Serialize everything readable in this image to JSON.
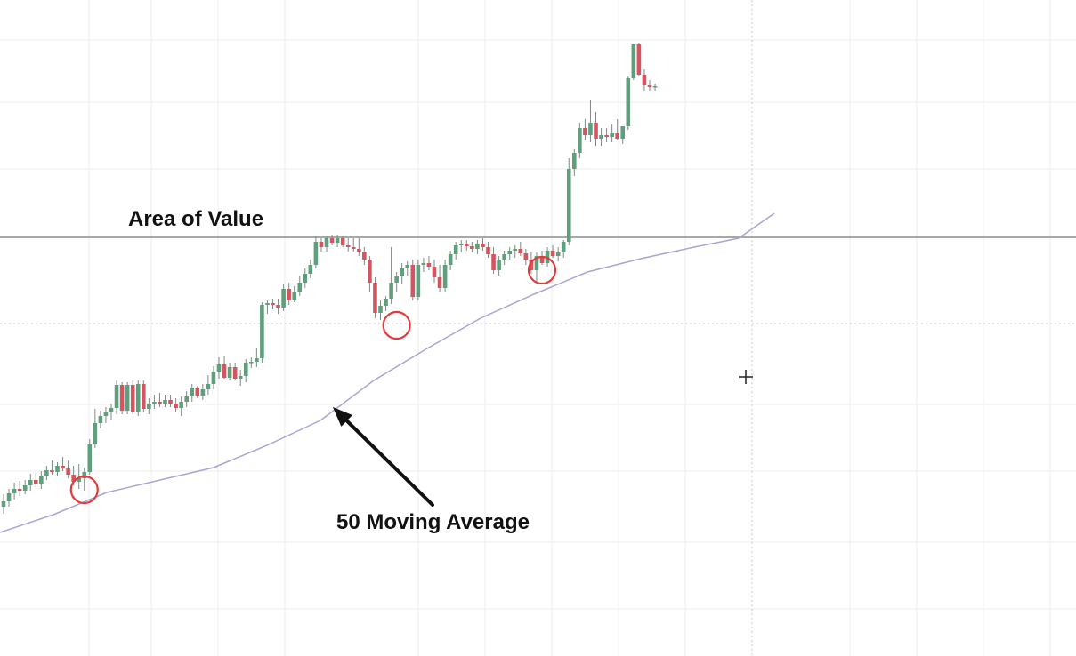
{
  "chart_data": {
    "type": "candlestick",
    "title": "",
    "xlabel": "",
    "ylabel": "",
    "ylim": [
      0,
      738
    ],
    "colors": {
      "up": "#5f9f7c",
      "down": "#d3555f",
      "moving_average": "#a9a6d6",
      "area_line": "#8c8c8c",
      "marker": "#e23b3b",
      "grid": "#eeeeee",
      "arrow": "#111111"
    },
    "candles": [
      {
        "o": 168,
        "h": 182,
        "l": 160,
        "c": 174
      },
      {
        "o": 174,
        "h": 188,
        "l": 168,
        "c": 183
      },
      {
        "o": 183,
        "h": 195,
        "l": 176,
        "c": 188
      },
      {
        "o": 188,
        "h": 197,
        "l": 180,
        "c": 186
      },
      {
        "o": 186,
        "h": 198,
        "l": 182,
        "c": 192
      },
      {
        "o": 192,
        "h": 205,
        "l": 186,
        "c": 198
      },
      {
        "o": 198,
        "h": 206,
        "l": 190,
        "c": 194
      },
      {
        "o": 194,
        "h": 208,
        "l": 188,
        "c": 203
      },
      {
        "o": 203,
        "h": 214,
        "l": 198,
        "c": 209
      },
      {
        "o": 209,
        "h": 220,
        "l": 204,
        "c": 207
      },
      {
        "o": 207,
        "h": 218,
        "l": 202,
        "c": 214
      },
      {
        "o": 214,
        "h": 224,
        "l": 208,
        "c": 211
      },
      {
        "o": 211,
        "h": 220,
        "l": 200,
        "c": 204
      },
      {
        "o": 204,
        "h": 214,
        "l": 192,
        "c": 196
      },
      {
        "o": 196,
        "h": 216,
        "l": 188,
        "c": 200
      },
      {
        "o": 200,
        "h": 212,
        "l": 186,
        "c": 207
      },
      {
        "o": 207,
        "h": 244,
        "l": 204,
        "c": 238
      },
      {
        "o": 238,
        "h": 278,
        "l": 234,
        "c": 262
      },
      {
        "o": 262,
        "h": 276,
        "l": 256,
        "c": 270
      },
      {
        "o": 270,
        "h": 280,
        "l": 262,
        "c": 274
      },
      {
        "o": 274,
        "h": 284,
        "l": 266,
        "c": 279
      },
      {
        "o": 279,
        "h": 310,
        "l": 272,
        "c": 305
      },
      {
        "o": 305,
        "h": 308,
        "l": 272,
        "c": 276
      },
      {
        "o": 276,
        "h": 308,
        "l": 272,
        "c": 305
      },
      {
        "o": 305,
        "h": 310,
        "l": 272,
        "c": 274
      },
      {
        "o": 274,
        "h": 310,
        "l": 270,
        "c": 306
      },
      {
        "o": 306,
        "h": 310,
        "l": 274,
        "c": 278
      },
      {
        "o": 278,
        "h": 290,
        "l": 272,
        "c": 284
      },
      {
        "o": 284,
        "h": 294,
        "l": 278,
        "c": 286
      },
      {
        "o": 286,
        "h": 296,
        "l": 280,
        "c": 284
      },
      {
        "o": 284,
        "h": 294,
        "l": 280,
        "c": 288
      },
      {
        "o": 288,
        "h": 294,
        "l": 280,
        "c": 284
      },
      {
        "o": 284,
        "h": 290,
        "l": 274,
        "c": 279
      },
      {
        "o": 279,
        "h": 292,
        "l": 270,
        "c": 286
      },
      {
        "o": 286,
        "h": 298,
        "l": 280,
        "c": 292
      },
      {
        "o": 292,
        "h": 306,
        "l": 286,
        "c": 302
      },
      {
        "o": 302,
        "h": 304,
        "l": 290,
        "c": 293
      },
      {
        "o": 293,
        "h": 306,
        "l": 288,
        "c": 300
      },
      {
        "o": 300,
        "h": 316,
        "l": 294,
        "c": 306
      },
      {
        "o": 306,
        "h": 326,
        "l": 300,
        "c": 320
      },
      {
        "o": 320,
        "h": 336,
        "l": 312,
        "c": 328
      },
      {
        "o": 328,
        "h": 338,
        "l": 312,
        "c": 313
      },
      {
        "o": 313,
        "h": 330,
        "l": 310,
        "c": 325
      },
      {
        "o": 325,
        "h": 330,
        "l": 310,
        "c": 312
      },
      {
        "o": 312,
        "h": 322,
        "l": 304,
        "c": 315
      },
      {
        "o": 315,
        "h": 334,
        "l": 308,
        "c": 330
      },
      {
        "o": 330,
        "h": 336,
        "l": 324,
        "c": 331
      },
      {
        "o": 331,
        "h": 346,
        "l": 325,
        "c": 335
      },
      {
        "o": 335,
        "h": 398,
        "l": 330,
        "c": 395
      },
      {
        "o": 395,
        "h": 400,
        "l": 385,
        "c": 397
      },
      {
        "o": 397,
        "h": 402,
        "l": 390,
        "c": 395
      },
      {
        "o": 395,
        "h": 402,
        "l": 385,
        "c": 392
      },
      {
        "o": 392,
        "h": 418,
        "l": 388,
        "c": 413
      },
      {
        "o": 413,
        "h": 420,
        "l": 395,
        "c": 400
      },
      {
        "o": 400,
        "h": 416,
        "l": 398,
        "c": 410
      },
      {
        "o": 410,
        "h": 428,
        "l": 405,
        "c": 420
      },
      {
        "o": 420,
        "h": 436,
        "l": 414,
        "c": 430
      },
      {
        "o": 430,
        "h": 446,
        "l": 425,
        "c": 440
      },
      {
        "o": 440,
        "h": 472,
        "l": 436,
        "c": 466
      },
      {
        "o": 466,
        "h": 470,
        "l": 455,
        "c": 460
      },
      {
        "o": 460,
        "h": 472,
        "l": 455,
        "c": 470
      },
      {
        "o": 470,
        "h": 474,
        "l": 462,
        "c": 465
      },
      {
        "o": 465,
        "h": 474,
        "l": 460,
        "c": 470
      },
      {
        "o": 470,
        "h": 472,
        "l": 460,
        "c": 462
      },
      {
        "o": 462,
        "h": 470,
        "l": 455,
        "c": 460
      },
      {
        "o": 460,
        "h": 470,
        "l": 455,
        "c": 458
      },
      {
        "o": 458,
        "h": 470,
        "l": 450,
        "c": 455
      },
      {
        "o": 455,
        "h": 460,
        "l": 440,
        "c": 446
      },
      {
        "o": 446,
        "h": 450,
        "l": 410,
        "c": 420
      },
      {
        "o": 420,
        "h": 426,
        "l": 380,
        "c": 386
      },
      {
        "o": 386,
        "h": 400,
        "l": 378,
        "c": 394
      },
      {
        "o": 394,
        "h": 405,
        "l": 388,
        "c": 402
      },
      {
        "o": 402,
        "h": 460,
        "l": 396,
        "c": 420
      },
      {
        "o": 420,
        "h": 432,
        "l": 410,
        "c": 427
      },
      {
        "o": 427,
        "h": 442,
        "l": 418,
        "c": 436
      },
      {
        "o": 436,
        "h": 444,
        "l": 428,
        "c": 440
      },
      {
        "o": 440,
        "h": 446,
        "l": 400,
        "c": 404
      },
      {
        "o": 404,
        "h": 446,
        "l": 400,
        "c": 440
      },
      {
        "o": 440,
        "h": 448,
        "l": 432,
        "c": 442
      },
      {
        "o": 442,
        "h": 450,
        "l": 434,
        "c": 438
      },
      {
        "o": 438,
        "h": 446,
        "l": 420,
        "c": 426
      },
      {
        "o": 426,
        "h": 440,
        "l": 410,
        "c": 414
      },
      {
        "o": 414,
        "h": 446,
        "l": 410,
        "c": 440
      },
      {
        "o": 440,
        "h": 456,
        "l": 434,
        "c": 452
      },
      {
        "o": 452,
        "h": 466,
        "l": 446,
        "c": 462
      },
      {
        "o": 462,
        "h": 468,
        "l": 454,
        "c": 464
      },
      {
        "o": 464,
        "h": 468,
        "l": 456,
        "c": 461
      },
      {
        "o": 461,
        "h": 466,
        "l": 454,
        "c": 458
      },
      {
        "o": 458,
        "h": 468,
        "l": 452,
        "c": 464
      },
      {
        "o": 464,
        "h": 470,
        "l": 456,
        "c": 460
      },
      {
        "o": 460,
        "h": 466,
        "l": 448,
        "c": 452
      },
      {
        "o": 452,
        "h": 460,
        "l": 430,
        "c": 434
      },
      {
        "o": 434,
        "h": 450,
        "l": 428,
        "c": 446
      },
      {
        "o": 446,
        "h": 456,
        "l": 440,
        "c": 452
      },
      {
        "o": 452,
        "h": 460,
        "l": 446,
        "c": 456
      },
      {
        "o": 456,
        "h": 462,
        "l": 448,
        "c": 458
      },
      {
        "o": 458,
        "h": 466,
        "l": 450,
        "c": 453
      },
      {
        "o": 453,
        "h": 458,
        "l": 440,
        "c": 446
      },
      {
        "o": 446,
        "h": 454,
        "l": 430,
        "c": 434
      },
      {
        "o": 434,
        "h": 454,
        "l": 420,
        "c": 450
      },
      {
        "o": 450,
        "h": 456,
        "l": 440,
        "c": 442
      },
      {
        "o": 442,
        "h": 460,
        "l": 438,
        "c": 456
      },
      {
        "o": 456,
        "h": 462,
        "l": 448,
        "c": 450
      },
      {
        "o": 450,
        "h": 460,
        "l": 444,
        "c": 454
      },
      {
        "o": 454,
        "h": 468,
        "l": 448,
        "c": 466
      },
      {
        "o": 466,
        "h": 560,
        "l": 462,
        "c": 548
      },
      {
        "o": 548,
        "h": 570,
        "l": 540,
        "c": 566
      },
      {
        "o": 566,
        "h": 600,
        "l": 560,
        "c": 594
      },
      {
        "o": 594,
        "h": 604,
        "l": 580,
        "c": 586
      },
      {
        "o": 586,
        "h": 626,
        "l": 578,
        "c": 600
      },
      {
        "o": 600,
        "h": 612,
        "l": 574,
        "c": 582
      },
      {
        "o": 582,
        "h": 594,
        "l": 574,
        "c": 586
      },
      {
        "o": 586,
        "h": 594,
        "l": 578,
        "c": 584
      },
      {
        "o": 584,
        "h": 598,
        "l": 578,
        "c": 588
      },
      {
        "o": 588,
        "h": 604,
        "l": 580,
        "c": 582
      },
      {
        "o": 582,
        "h": 596,
        "l": 576,
        "c": 596
      },
      {
        "o": 596,
        "h": 652,
        "l": 592,
        "c": 650
      },
      {
        "o": 650,
        "h": 688,
        "l": 648,
        "c": 688
      },
      {
        "o": 688,
        "h": 690,
        "l": 652,
        "c": 654
      },
      {
        "o": 654,
        "h": 660,
        "l": 636,
        "c": 642
      },
      {
        "o": 642,
        "h": 648,
        "l": 636,
        "c": 640
      },
      {
        "o": 640,
        "h": 644,
        "l": 636,
        "c": 641
      }
    ],
    "moving_average": [
      [
        0,
        139
      ],
      [
        60,
        159
      ],
      [
        120,
        184
      ],
      [
        180,
        198
      ],
      [
        240,
        212
      ],
      [
        300,
        237
      ],
      [
        360,
        265
      ],
      [
        420,
        310
      ],
      [
        480,
        346
      ],
      [
        540,
        380
      ],
      [
        600,
        407
      ],
      [
        660,
        432
      ],
      [
        720,
        447
      ],
      [
        780,
        460
      ],
      [
        830,
        470
      ],
      [
        870,
        498
      ]
    ],
    "area_of_value_level": 471,
    "touch_points": [
      {
        "index": 15,
        "value": 187
      },
      {
        "index": 73,
        "value": 372
      },
      {
        "index": 100,
        "value": 434
      }
    ],
    "crosshair": {
      "x": 838,
      "y": 314
    },
    "annotations": {
      "area_of_value": "Area of Value",
      "moving_average": "50 Moving Average"
    }
  }
}
